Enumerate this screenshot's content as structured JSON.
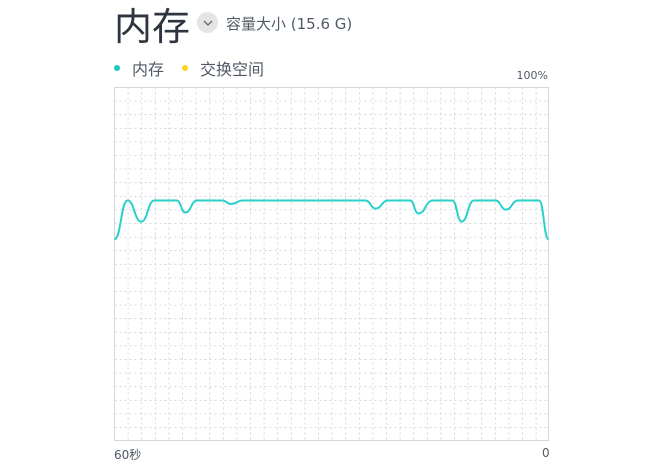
{
  "header": {
    "title": "内存",
    "capacity_label": "容量大小 (15.6 G)",
    "dropdown_icon": "chevron-down-icon"
  },
  "legend": [
    {
      "label": "内存",
      "color": "#1ec8c0"
    },
    {
      "label": "交换空间",
      "color": "#f8d81c"
    }
  ],
  "chart_data": {
    "type": "line",
    "ylim": [
      0,
      100
    ],
    "y_max_label": "100%",
    "x_start_label": "60秒",
    "x_end_label": "0",
    "xlim": [
      60,
      0
    ],
    "grid": true,
    "series": [
      {
        "name": "内存",
        "color": "#2ad1c9",
        "x": [
          60,
          58.2,
          56.3,
          54.5,
          51.4,
          50.2,
          48.6,
          45.1,
          43.9,
          42.3,
          25.3,
          23.9,
          22.2,
          19.1,
          18,
          16,
          13.3,
          12,
          10.3,
          7.3,
          5.9,
          4.2,
          1.3,
          0
        ],
        "y": [
          57,
          68,
          62,
          68,
          68,
          64.6,
          68,
          68,
          67,
          68,
          68,
          65.7,
          68,
          68,
          64.3,
          68,
          68,
          62,
          68,
          68,
          65.4,
          68,
          68,
          57
        ]
      }
    ]
  }
}
